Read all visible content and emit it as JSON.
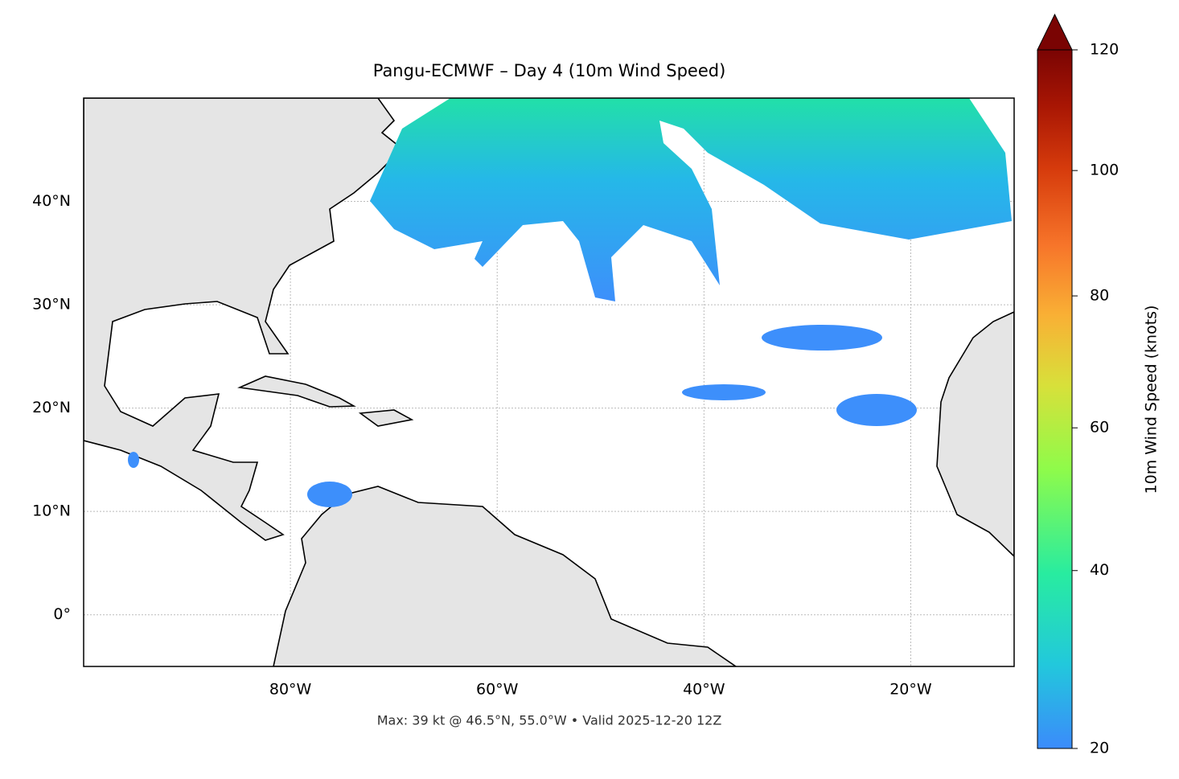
{
  "map": {
    "title": "Pangu-ECMWF – Day 4 (10m Wind Speed)",
    "xlim": [
      -100,
      -10
    ],
    "ylim": [
      -5,
      50
    ],
    "xticks": [
      {
        "value": -80,
        "label": "80°W"
      },
      {
        "value": -60,
        "label": "60°W"
      },
      {
        "value": -40,
        "label": "40°W"
      },
      {
        "value": -20,
        "label": "20°W"
      }
    ],
    "yticks": [
      {
        "value": 0,
        "label": "0°"
      },
      {
        "value": 10,
        "label": "10°N"
      },
      {
        "value": 20,
        "label": "20°N"
      },
      {
        "value": 30,
        "label": "30°N"
      },
      {
        "value": 40,
        "label": "40°N"
      }
    ],
    "grid": true,
    "colorbar": {
      "label": "10m Wind Speed (knots)",
      "lim": [
        20,
        120
      ],
      "ticks": [
        20,
        40,
        60,
        80,
        100,
        120
      ],
      "norm": "power",
      "gamma": 0.85,
      "extend": "max"
    },
    "footer": "Max: 39 kt @ 46.5°N, 55.0°W • Valid 2025-12-20 12Z"
  }
}
